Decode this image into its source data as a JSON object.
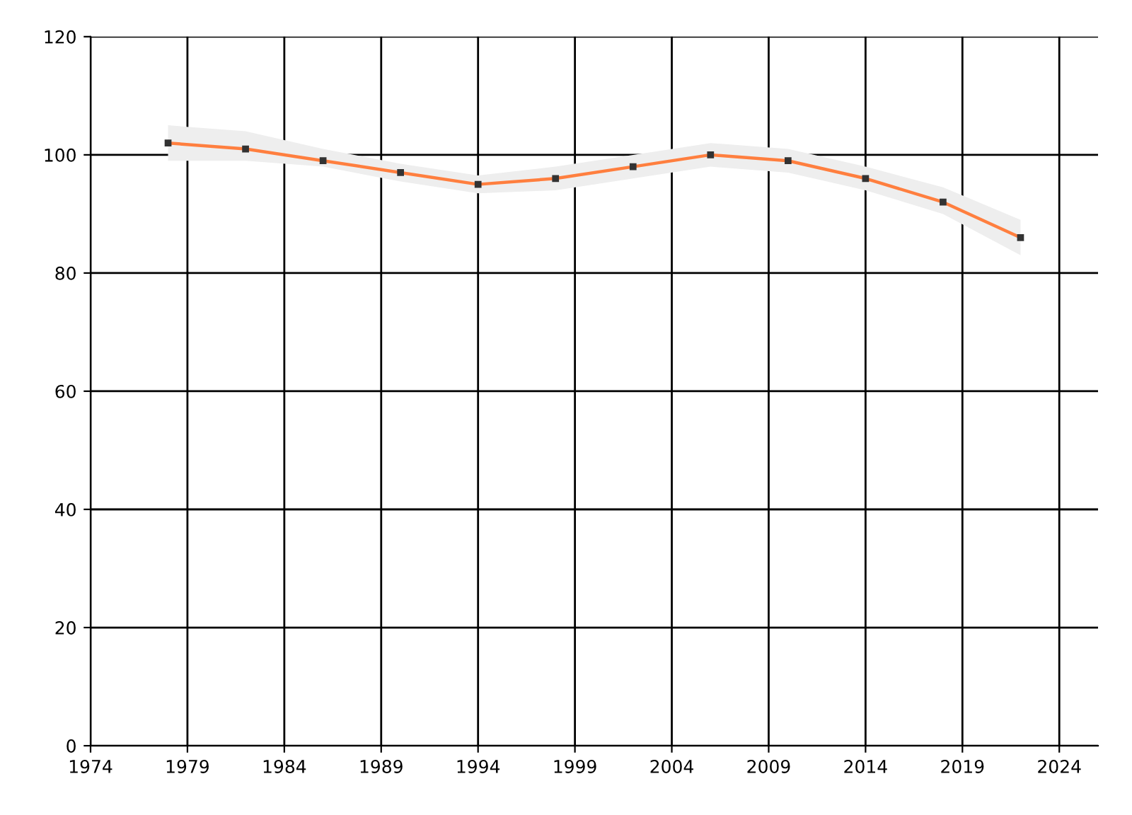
{
  "chart_data": {
    "type": "line",
    "x": [
      1978,
      1982,
      1986,
      1990,
      1994,
      1998,
      2002,
      2006,
      2010,
      2014,
      2018,
      2022
    ],
    "series": [
      {
        "color": "#ff7f3f",
        "values": [
          102,
          101,
          99,
          97,
          95,
          96,
          98,
          100,
          99,
          96,
          92,
          86
        ],
        "lower": [
          99,
          99,
          98,
          95.5,
          93.5,
          94,
          96,
          98,
          97,
          94,
          90,
          83
        ],
        "upper": [
          105,
          104,
          101,
          98.5,
          96.5,
          98,
          100,
          102,
          101,
          98,
          94.5,
          89
        ]
      }
    ],
    "xlim": [
      1974,
      2026
    ],
    "xticks": [
      1974,
      1979,
      1984,
      1989,
      1994,
      1999,
      2004,
      2009,
      2014,
      2019,
      2024
    ],
    "ylim": [
      0,
      120
    ],
    "yticks": [
      0,
      20,
      40,
      60,
      80,
      100,
      120
    ],
    "grid": true,
    "marker": "square",
    "line_style": "solid",
    "legend": false
  }
}
